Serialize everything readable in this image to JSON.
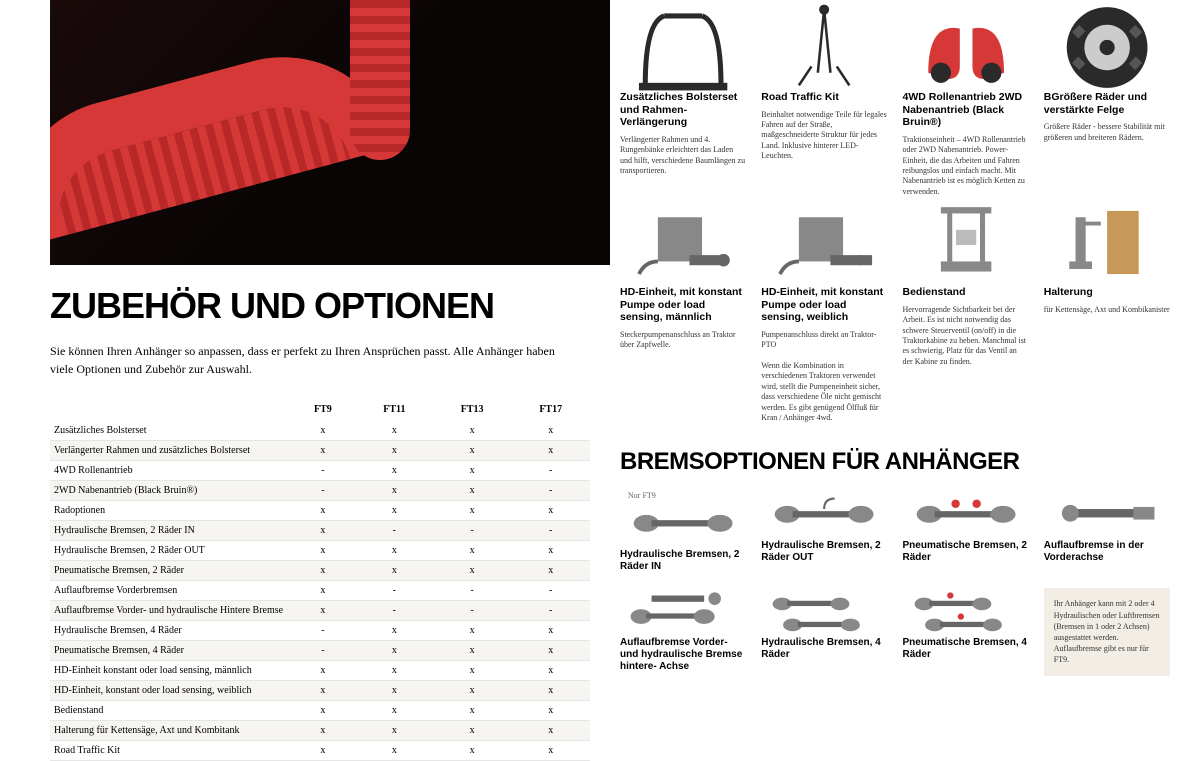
{
  "heading": "ZUBEHÖR UND OPTIONEN",
  "intro": "Sie können Ihren Anhänger so anpassen, dass er perfekt zu Ihren Ansprüchen passt. Alle Anhänger haben viele Optionen und Zubehör zur Auswahl.",
  "table": {
    "columns": [
      "",
      "FT9",
      "FT11",
      "FT13",
      "FT17"
    ],
    "rows": [
      [
        "Zusätzliches Bolsterset",
        "x",
        "x",
        "x",
        "x"
      ],
      [
        "Verlängerter Rahmen und zusätzliches Bolsterset",
        "x",
        "x",
        "x",
        "x"
      ],
      [
        "4WD Rollenantrieb",
        "-",
        "x",
        "x",
        "-"
      ],
      [
        "2WD Nabenantrieb (Black Bruin®)",
        "-",
        "x",
        "x",
        "-"
      ],
      [
        "Radoptionen",
        "x",
        "x",
        "x",
        "x"
      ],
      [
        "Hydraulische Bremsen, 2 Räder IN",
        "x",
        "-",
        "-",
        "-"
      ],
      [
        "Hydraulische Bremsen, 2 Räder OUT",
        "x",
        "x",
        "x",
        "x"
      ],
      [
        "Pneumatische Bremsen, 2 Räder",
        "x",
        "x",
        "x",
        "x"
      ],
      [
        "Auflaufbremse Vorderbremsen",
        "x",
        "-",
        "-",
        "-"
      ],
      [
        "Auflaufbremse Vorder- und hydraulische Hintere Bremse",
        "x",
        "-",
        "-",
        "-"
      ],
      [
        "Hydraulische Bremsen, 4 Räder",
        "-",
        "x",
        "x",
        "x"
      ],
      [
        "Pneumatische Bremsen, 4 Räder",
        "-",
        "x",
        "x",
        "x"
      ],
      [
        "HD-Einheit konstant  oder load sensing, männlich",
        "x",
        "x",
        "x",
        "x"
      ],
      [
        "HD-Einheit, konstant oder load sensing, weiblich",
        "x",
        "x",
        "x",
        "x"
      ],
      [
        "Bedienstand",
        "x",
        "x",
        "x",
        "x"
      ],
      [
        "Halterung für Kettensäge, Axt und Kombitank",
        "x",
        "x",
        "x",
        "x"
      ],
      [
        "Road Traffic Kit",
        "x",
        "x",
        "x",
        "x"
      ]
    ]
  },
  "accessories": [
    {
      "title": "Zusätzliches Bolsterset und Rahmen-Verlängerung",
      "desc": "Verlängerter Rahmen und 4. Rungenbänke erleichtert das Laden und hilft, verschiedene Baumlängen zu transportieren.",
      "icon": "bolster"
    },
    {
      "title": "Road Traffic Kit",
      "desc": "Beinhaltet notwendige Teile für legales Fahren auf der Straße, maßgeschneiderte Struktur für jedes Land. Inklusive hinterer LED-Leuchten.",
      "icon": "traffic"
    },
    {
      "title": "4WD Rollenantrieb 2WD Nabenantrieb (Black Bruin®)",
      "desc": "Traktionseinheit – 4WD Rollenantrieb oder 2WD Nabenantrieb. Power-Einheit, die das Arbeiten und Fahren reibungslos und einfach macht. Mit Nabenantrieb ist es möglich Ketten zu verwenden.",
      "icon": "4wd"
    },
    {
      "title": "BGrößere Räder und verstärkte Felge",
      "desc": "Größere Räder - bessere Stabilität mit größeren und breiteren Rädern.",
      "icon": "wheel"
    },
    {
      "title": "HD-Einheit, mit konstant Pumpe oder load sensing, männlich",
      "desc": "Steckerpumpenanschluss an Traktor über Zapfwelle.",
      "icon": "hd-m"
    },
    {
      "title": "HD-Einheit, mit konstant Pumpe oder load sensing, weiblich",
      "desc": "Pumpenanschluss direkt an Traktor-PTO\n\nWenn die Kombination in verschiedenen Traktoren verwendet wird, stellt die Pumpeneinheit sicher, dass verschiedene Öle nicht gemischt werden. Es gibt genügend Ölfluß für Kran / Anhänger 4wd.",
      "icon": "hd-f"
    },
    {
      "title": "Bedienstand",
      "desc": "Hervorragende Sichtbarkeit bei der Arbeit. Es ist nicht notwendig das schwere Steuerventil (on/off) in die Traktorkabine zu heben. Manchmal ist es schwierig, Platz für das Ventil an der Kabine zu finden.",
      "icon": "stand"
    },
    {
      "title": "Halterung",
      "desc": "für Kettensäge, Axt und Kombikanister",
      "icon": "holder"
    }
  ],
  "brakesHeading": "BREMSOPTIONEN FÜR ANHÄNGER",
  "nurFt9": "Nur FT9",
  "brakes1": [
    {
      "title": "Hydraulische Bremsen, 2 Räder IN",
      "icon": "brake1",
      "nur": true
    },
    {
      "title": "Hydraulische Bremsen, 2 Räder OUT",
      "icon": "brake2"
    },
    {
      "title": "Pneumatische Bremsen, 2 Räder",
      "icon": "brake3"
    },
    {
      "title": "Auflaufbremse in der Vorderachse",
      "icon": "brake4"
    }
  ],
  "brakes2": [
    {
      "title": "Auflaufbremse Vorder- und hydraulische Bremse hintere- Achse",
      "icon": "brake5"
    },
    {
      "title": "Hydraulische Bremsen, 4 Räder",
      "icon": "brake6"
    },
    {
      "title": "Pneumatische Bremsen, 4 Räder",
      "icon": "brake7"
    }
  ],
  "noteBox": "Ihr Anhänger kann mit 2 oder 4 Hydraulischen oder Luftbremsen (Bremsen in 1 oder 2 Achsen) ausgestattet werden. Auflaufbremse gibt es nur für FT9.",
  "colors": {
    "red": "#d63838",
    "dark": "#2a2a2a",
    "beige": "#f2ede5",
    "gray": "#888"
  }
}
